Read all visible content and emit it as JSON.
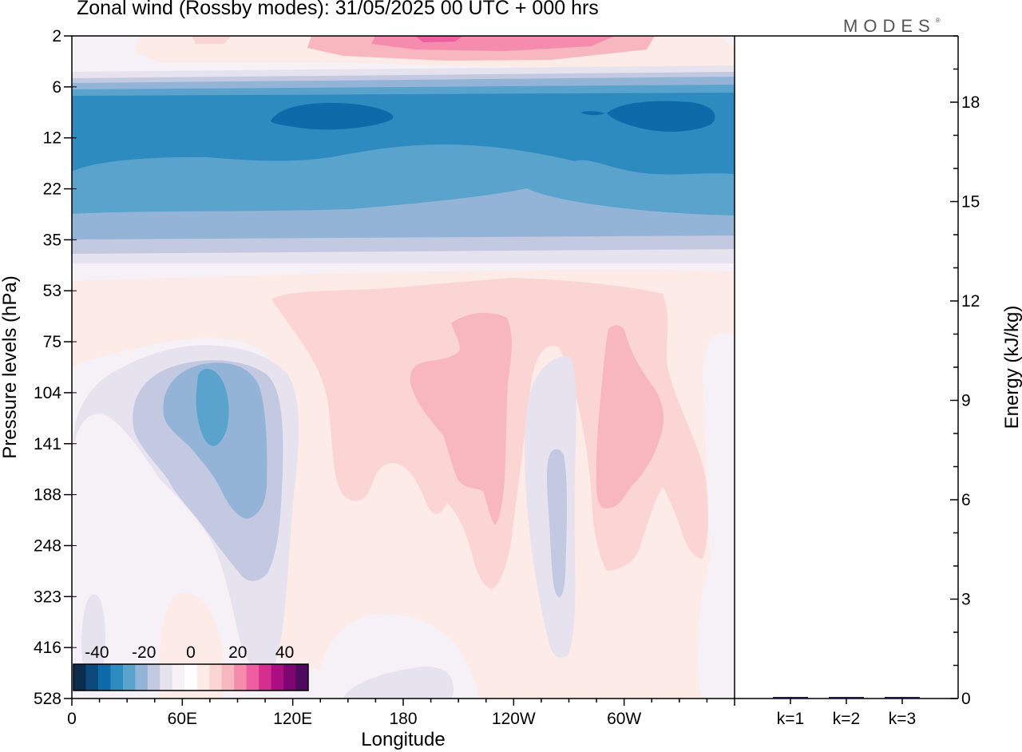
{
  "header": {
    "title": "Zonal wind (Rossby modes):  31/05/2025  00 UTC  + 000 hrs",
    "brand": "MODES",
    "brand_mark": "®"
  },
  "chart_data": [
    {
      "type": "heatmap",
      "title": "Zonal wind (Rossby modes):  31/05/2025  00 UTC  + 000 hrs",
      "xlabel": "Longitude",
      "ylabel": "Pressure levels (hPa)",
      "x_ticks": [
        "0",
        "60E",
        "120E",
        "180",
        "120W",
        "60W"
      ],
      "y_ticks": [
        "2",
        "6",
        "12",
        "22",
        "35",
        "53",
        "75",
        "104",
        "141",
        "188",
        "248",
        "323",
        "416",
        "528"
      ],
      "y_scale": "log",
      "colorbar": {
        "tick_labels": [
          "-40",
          "-20",
          "0",
          "20",
          "40"
        ],
        "range": [
          -50,
          50
        ],
        "step": 5,
        "colors": [
          "#0b2d4e",
          "#0c4a7d",
          "#0f6aaa",
          "#2e8bc0",
          "#5aa3cc",
          "#93b4d6",
          "#c3c9e1",
          "#e6e3ef",
          "#f5f1f7",
          "#ffffff",
          "#fdebe7",
          "#fbd5d4",
          "#f8b6be",
          "#f58cae",
          "#ee5ea0",
          "#d52f90",
          "#ad0f82",
          "#7d0672",
          "#4d0a5e"
        ]
      },
      "features": [
        {
          "lon": [
            0,
            360
          ],
          "level": [
            6,
            20
          ],
          "value": -25
        },
        {
          "lon": [
            60,
            130
          ],
          "level": [
            60,
            260
          ],
          "value": -15
        },
        {
          "lon": [
            180,
            300
          ],
          "level": [
            60,
            300
          ],
          "value": 12
        },
        {
          "lon": [
            180,
            260
          ],
          "level": [
            2,
            3
          ],
          "value": 20
        }
      ]
    },
    {
      "type": "bar",
      "categories": [
        "k=1",
        "k=2",
        "k=3"
      ],
      "values": [
        0.02,
        0.01,
        0.01
      ],
      "ylabel": "Energy (kJ/kg)",
      "y_ticks": [
        "0",
        "3",
        "6",
        "9",
        "12",
        "15",
        "18"
      ],
      "ylim": [
        0,
        20
      ]
    }
  ]
}
